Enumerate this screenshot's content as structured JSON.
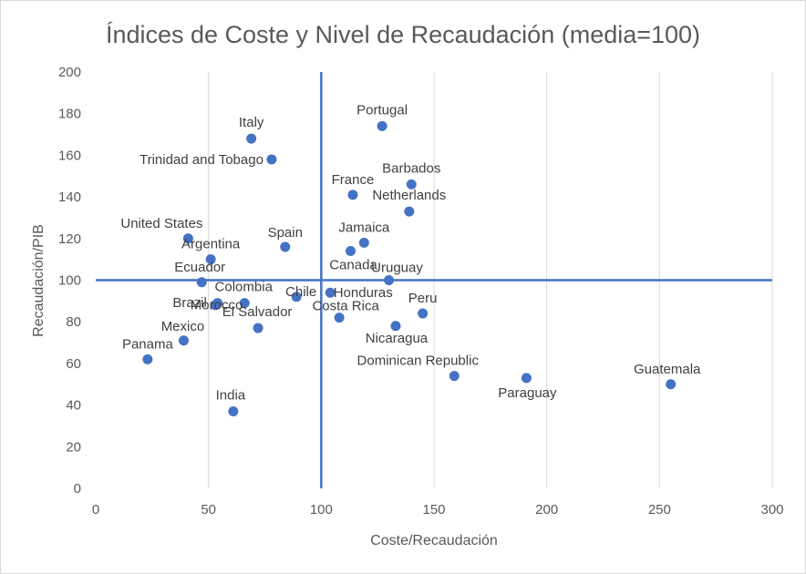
{
  "chart_data": {
    "type": "scatter",
    "title": "Índices de Coste y Nivel de Recaudación (media=100)",
    "xlabel": "Coste/Recaudación",
    "ylabel": "Recaudación/PIB",
    "xlim": [
      0,
      300
    ],
    "ylim": [
      0,
      200
    ],
    "x_ticks": [
      0,
      50,
      100,
      150,
      200,
      250,
      300
    ],
    "y_ticks": [
      0,
      20,
      40,
      60,
      80,
      100,
      120,
      140,
      160,
      180,
      200
    ],
    "gridlines": "vertical",
    "reference_lines": {
      "x": 100,
      "y": 100
    },
    "point_color": "#4472c4",
    "points": [
      {
        "label": "Italy",
        "x": 69,
        "y": 168
      },
      {
        "label": "Portugal",
        "x": 127,
        "y": 174
      },
      {
        "label": "Trinidad and Tobago",
        "x": 78,
        "y": 158
      },
      {
        "label": "France",
        "x": 114,
        "y": 141
      },
      {
        "label": "Barbados",
        "x": 140,
        "y": 146
      },
      {
        "label": "Netherlands",
        "x": 139,
        "y": 133
      },
      {
        "label": "United States",
        "x": 41,
        "y": 120
      },
      {
        "label": "Spain",
        "x": 84,
        "y": 116
      },
      {
        "label": "Jamaica",
        "x": 119,
        "y": 118
      },
      {
        "label": "Argentina",
        "x": 51,
        "y": 110
      },
      {
        "label": "Canada",
        "x": 113,
        "y": 114
      },
      {
        "label": "Ecuador",
        "x": 47,
        "y": 99
      },
      {
        "label": "Uruguay",
        "x": 130,
        "y": 100
      },
      {
        "label": "Chile",
        "x": 89,
        "y": 92
      },
      {
        "label": "Honduras",
        "x": 104,
        "y": 94
      },
      {
        "label": "Brazil",
        "x": 53,
        "y": 88
      },
      {
        "label": "Colombia",
        "x": 66,
        "y": 89
      },
      {
        "label": "Morocco",
        "x": 54,
        "y": 89
      },
      {
        "label": "Costa Rica",
        "x": 108,
        "y": 82
      },
      {
        "label": "Peru",
        "x": 145,
        "y": 84
      },
      {
        "label": "El Salvador",
        "x": 72,
        "y": 77
      },
      {
        "label": "Nicaragua",
        "x": 133,
        "y": 78
      },
      {
        "label": "Mexico",
        "x": 39,
        "y": 71
      },
      {
        "label": "Panama",
        "x": 23,
        "y": 62
      },
      {
        "label": "Dominican Republic",
        "x": 159,
        "y": 54
      },
      {
        "label": "Paraguay",
        "x": 191,
        "y": 53
      },
      {
        "label": "Guatemala",
        "x": 255,
        "y": 50
      },
      {
        "label": "India",
        "x": 61,
        "y": 37
      }
    ]
  }
}
